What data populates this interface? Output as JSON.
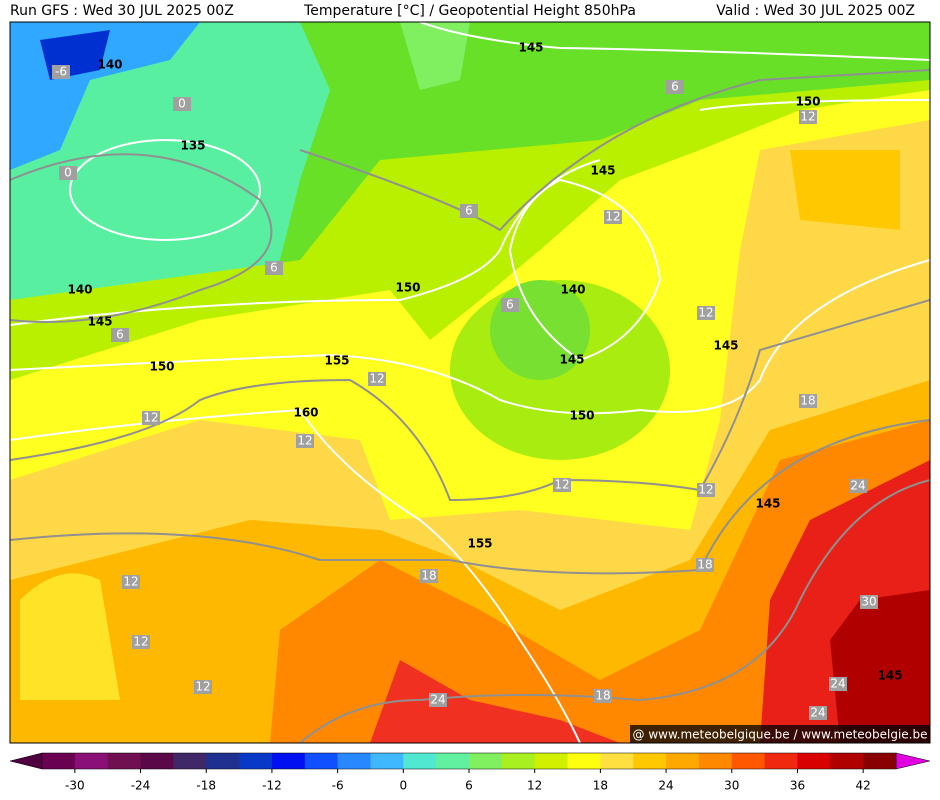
{
  "header": {
    "run": "Run GFS : Wed 30 JUL 2025 00Z",
    "title": "Temperature [°C] / Geopotential Height 850hPa",
    "valid": "Valid : Wed 30 JUL 2025 00Z"
  },
  "map": {
    "height_labels": [
      140,
      145,
      150,
      135,
      145,
      140,
      150,
      140,
      145,
      155,
      145,
      145,
      150,
      160,
      150,
      145,
      155,
      145
    ],
    "temperature_labels": [
      -6,
      0,
      0,
      6,
      12,
      6,
      12,
      6,
      6,
      6,
      12,
      12,
      12,
      12,
      18,
      12,
      12,
      24,
      18,
      18,
      12,
      12,
      30,
      12,
      24,
      18,
      24,
      24
    ],
    "credit": "@ www.meteobelgique.be / www.meteobelgie.be"
  },
  "legend": {
    "range": [
      -33,
      45
    ],
    "ticks": [
      -30,
      -24,
      -18,
      -12,
      -6,
      0,
      6,
      12,
      18,
      24,
      30,
      36,
      42
    ],
    "colors": [
      "#6a0050",
      "#8a1078",
      "#701050",
      "#5a0848",
      "#402868",
      "#203090",
      "#0838c8",
      "#0010f0",
      "#1050ff",
      "#2888ff",
      "#40b8ff",
      "#50e8d0",
      "#60f0a0",
      "#80f060",
      "#a8f020",
      "#d0f000",
      "#ffff10",
      "#ffe040",
      "#ffc800",
      "#ffa800",
      "#ff8800",
      "#ff5800",
      "#f02810",
      "#d80000",
      "#b00000",
      "#880000"
    ],
    "under_color": "#500040",
    "over_color": "#e000e0"
  }
}
